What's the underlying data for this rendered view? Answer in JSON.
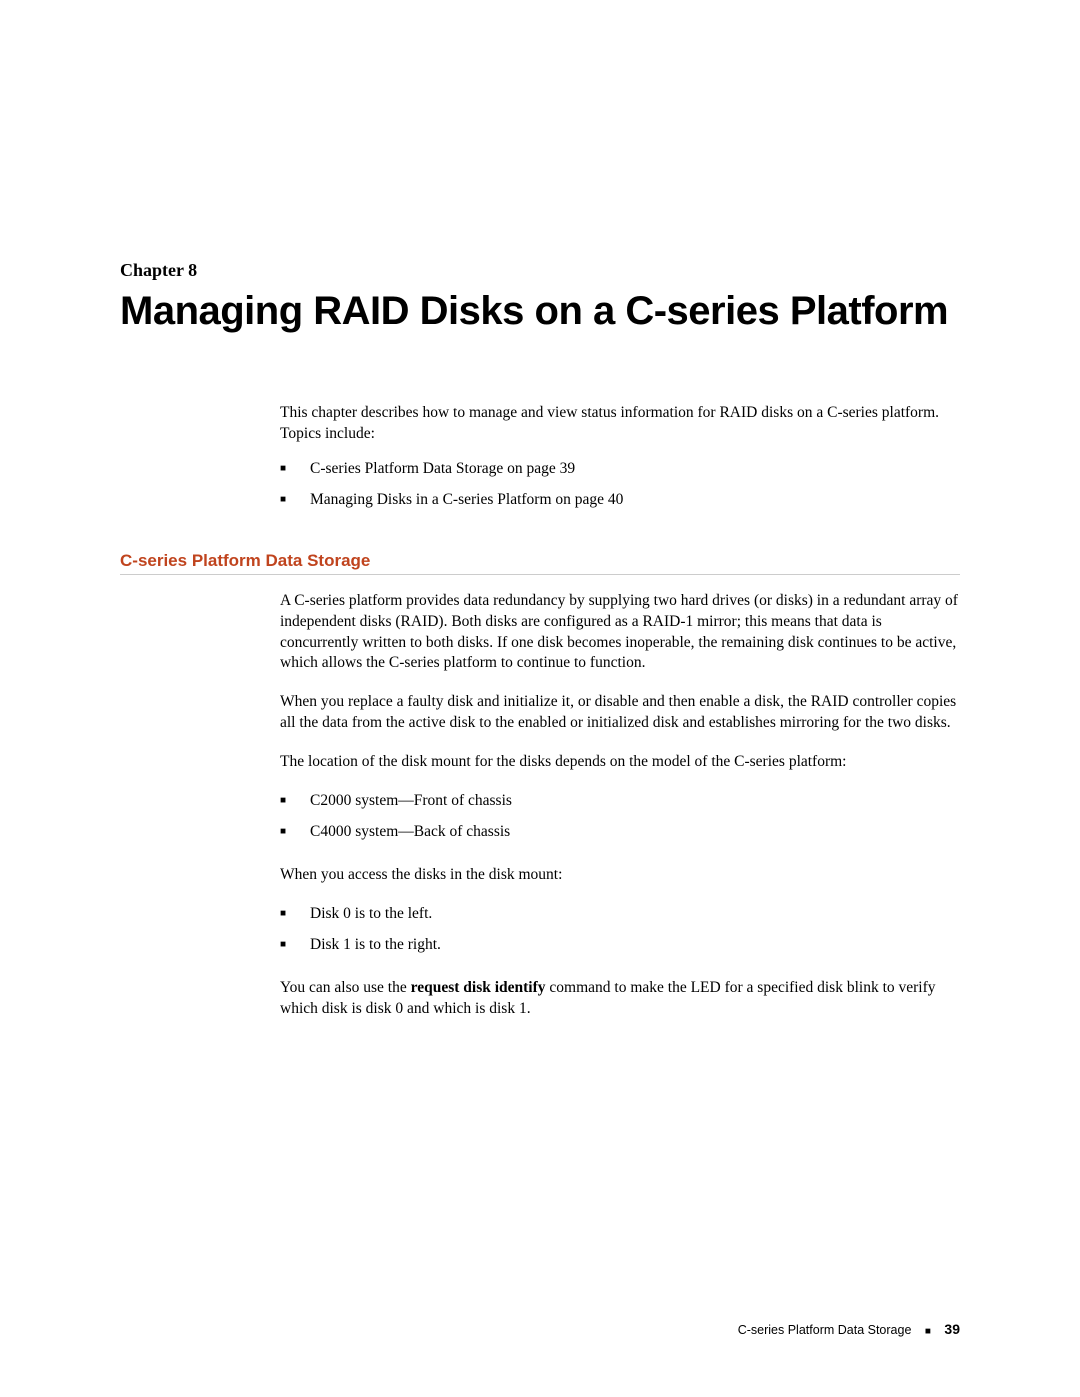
{
  "chapterLabel": "Chapter 8",
  "title": "Managing RAID Disks on a C-series Platform",
  "intro": "This chapter describes how to manage and view status information for RAID disks on a C-series platform. Topics include:",
  "toc": [
    "C-series Platform Data Storage  on page  39",
    "Managing Disks in a C-series Platform  on page  40"
  ],
  "section": {
    "heading": "C-series Platform Data Storage",
    "para1": "A C-series platform provides data redundancy by supplying two hard drives (or disks) in a redundant array of independent disks (RAID). Both disks are configured as a RAID-1 mirror; this means that data is concurrently written to both disks. If one disk becomes inoperable, the remaining disk continues to be active, which allows the C-series platform to continue to function.",
    "para2": "When you replace a faulty disk and initialize it, or disable and then enable a disk, the RAID controller copies all the data from the active disk to the enabled or initialized disk and establishes mirroring for the two disks.",
    "para3": "The location of the disk mount for the disks depends on the model of the C-series platform:",
    "list1": [
      "C2000 system—Front of chassis",
      "C4000 system—Back of chassis"
    ],
    "para4": "When you access the disks in the disk mount:",
    "list2": [
      "Disk 0 is to the left.",
      "Disk 1 is to the right."
    ],
    "para5_pre": "You can also use the ",
    "para5_bold": "request disk identify",
    "para5_post": " command to make the LED for a specified disk blink to verify which disk is disk 0 and which is disk 1."
  },
  "footer": {
    "text": "C-series Platform Data Storage",
    "pageNum": "39"
  },
  "colors": {
    "heading": "#c0441e",
    "rule": "#cccccc",
    "text": "#000000",
    "background": "#ffffff"
  }
}
